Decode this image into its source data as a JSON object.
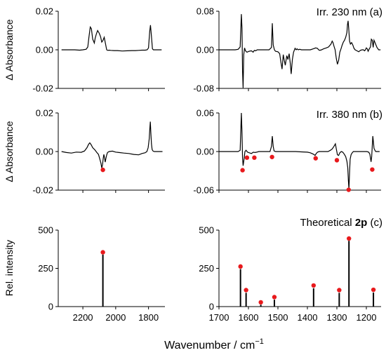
{
  "figure": {
    "xlabel_main": "Wavenumber / cm",
    "xlabel_sup": "−1",
    "ylabel_row1": "Δ Absorbance",
    "ylabel_row2": "Δ Absorbance",
    "ylabel_row3": "Rel. intensity",
    "title_a": "Irr. 230 nm (a)",
    "title_b": "Irr. 380 nm  (b)",
    "title_c_pre": "Theoretical ",
    "title_c_bold": "2p",
    "title_c_post": " (c)"
  },
  "chart_data": [
    {
      "id": "a-left",
      "type": "line",
      "panel": "a",
      "xlim": [
        2350,
        1700
      ],
      "ylim": [
        -0.02,
        0.02
      ],
      "yticks": [
        -0.02,
        0.0,
        0.02
      ],
      "ytick_labels": [
        "-0.02",
        "0.00",
        "0.02"
      ],
      "xticks": [
        2200,
        2000,
        1800
      ],
      "xtick_labels": [],
      "xtick_label_show": false,
      "x": [
        2330,
        2300,
        2250,
        2220,
        2200,
        2180,
        2170,
        2163,
        2155,
        2148,
        2140,
        2130,
        2125,
        2118,
        2110,
        2100,
        2092,
        2085,
        2078,
        2070,
        2062,
        2055,
        2048,
        2040,
        2030,
        2010,
        1990,
        1960,
        1930,
        1900,
        1880,
        1860,
        1840,
        1820,
        1808,
        1800,
        1793,
        1788,
        1782,
        1776,
        1770,
        1760,
        1740,
        1720
      ],
      "y": [
        0.0,
        0.0,
        0.0,
        -0.0002,
        0.0,
        0.0003,
        0.0015,
        0.0065,
        0.0118,
        0.011,
        0.0055,
        0.0035,
        0.006,
        0.0082,
        0.01,
        0.0085,
        0.0068,
        0.004,
        0.0048,
        0.0065,
        0.0032,
        0.0,
        -0.0003,
        -0.0002,
        -0.0003,
        -0.0004,
        -0.0004,
        -0.0006,
        -0.0005,
        -0.0004,
        -0.0004,
        -0.0003,
        -0.0002,
        -0.0002,
        0.0,
        0.001,
        0.0095,
        0.0128,
        0.007,
        0.0005,
        0.0,
        0.0,
        0.0,
        0.0
      ]
    },
    {
      "id": "a-right",
      "type": "line",
      "panel": "a",
      "xlim": [
        1700,
        1150
      ],
      "ylim": [
        -0.08,
        0.08
      ],
      "yticks": [
        -0.08,
        0.0,
        0.08
      ],
      "ytick_labels": [
        "-0.08",
        "0.00",
        "0.08"
      ],
      "xticks": [
        1700,
        1600,
        1500,
        1400,
        1300,
        1200
      ],
      "xtick_labels": [],
      "xtick_label_show": false,
      "x": [
        1700,
        1680,
        1660,
        1645,
        1635,
        1628,
        1624,
        1622,
        1620,
        1618,
        1616,
        1613,
        1610,
        1605,
        1598,
        1590,
        1584,
        1580,
        1576,
        1570,
        1560,
        1550,
        1540,
        1530,
        1522,
        1519,
        1516,
        1512,
        1508,
        1500,
        1494,
        1490,
        1486,
        1482,
        1479,
        1475,
        1470,
        1466,
        1462,
        1458,
        1455,
        1451,
        1447,
        1442,
        1438,
        1435,
        1431,
        1426,
        1420,
        1410,
        1400,
        1390,
        1380,
        1372,
        1366,
        1362,
        1358,
        1352,
        1345,
        1336,
        1328,
        1320,
        1316,
        1313,
        1310,
        1306,
        1302,
        1298,
        1294,
        1290,
        1286,
        1282,
        1278,
        1274,
        1270,
        1266,
        1264,
        1262,
        1260,
        1257,
        1254,
        1250,
        1246,
        1242,
        1238,
        1232,
        1226,
        1220,
        1214,
        1210,
        1206,
        1203,
        1200,
        1197,
        1194,
        1190,
        1186,
        1183,
        1180,
        1177,
        1174,
        1170,
        1164,
        1158,
        1152
      ],
      "y": [
        0.0,
        0.0,
        0.0,
        0.0,
        0.001,
        0.006,
        0.074,
        0.045,
        -0.045,
        -0.079,
        -0.01,
        0.004,
        -0.002,
        -0.005,
        -0.003,
        -0.002,
        -0.005,
        -0.001,
        -0.002,
        0.0,
        0.0,
        0.0,
        0.0,
        0.0,
        0.005,
        0.055,
        0.01,
        0.0,
        -0.003,
        -0.004,
        -0.008,
        -0.025,
        -0.04,
        -0.01,
        -0.02,
        -0.032,
        -0.012,
        -0.02,
        -0.008,
        -0.028,
        -0.05,
        -0.02,
        -0.005,
        0.003,
        0.0,
        0.002,
        0.0,
        0.001,
        0.0,
        0.0,
        0.0,
        0.0,
        0.002,
        0.004,
        0.003,
        0.0,
        -0.001,
        0.0,
        0.002,
        0.004,
        0.006,
        0.012,
        0.018,
        0.015,
        0.008,
        0.0,
        -0.018,
        -0.03,
        -0.022,
        -0.005,
        0.002,
        0.01,
        0.016,
        0.02,
        0.026,
        0.036,
        0.052,
        0.06,
        0.046,
        0.018,
        0.012,
        0.015,
        0.01,
        0.003,
        0.0,
        -0.002,
        -0.004,
        -0.001,
        0.0,
        0.0,
        -0.002,
        0.0,
        0.004,
        0.002,
        -0.003,
        0.002,
        0.006,
        0.022,
        0.02,
        0.005,
        0.02,
        0.014,
        0.005,
        0.0,
        0.0
      ]
    },
    {
      "id": "b-left",
      "type": "line",
      "panel": "b",
      "xlim": [
        2350,
        1700
      ],
      "ylim": [
        -0.02,
        0.02
      ],
      "yticks": [
        -0.02,
        0.0,
        0.02
      ],
      "ytick_labels": [
        "-0.02",
        "0.00",
        "0.02"
      ],
      "xticks": [
        2200,
        2000,
        1800
      ],
      "xtick_labels": [],
      "xtick_label_show": false,
      "x": [
        2330,
        2300,
        2270,
        2240,
        2210,
        2190,
        2175,
        2165,
        2158,
        2150,
        2140,
        2128,
        2115,
        2105,
        2098,
        2090,
        2085,
        2080,
        2076,
        2072,
        2068,
        2064,
        2060,
        2055,
        2050,
        2040,
        2020,
        2000,
        1980,
        1950,
        1920,
        1890,
        1860,
        1840,
        1820,
        1810,
        1802,
        1796,
        1792,
        1789,
        1786,
        1782,
        1778,
        1772,
        1765,
        1750,
        1730,
        1715
      ],
      "y": [
        0.0,
        -0.0005,
        -0.0008,
        -0.0003,
        -0.0004,
        0.0003,
        0.002,
        0.0038,
        0.0045,
        0.0036,
        0.002,
        0.001,
        -0.0005,
        -0.0015,
        -0.0035,
        -0.006,
        -0.0085,
        -0.0068,
        -0.0035,
        -0.0015,
        -0.003,
        -0.0055,
        -0.0038,
        -0.0018,
        -0.0005,
        0.0,
        0.0002,
        -0.0003,
        -0.0005,
        -0.0008,
        -0.001,
        -0.0015,
        -0.0017,
        -0.001,
        -0.0006,
        0.0,
        0.002,
        0.0065,
        0.012,
        0.0155,
        0.01,
        0.004,
        0.001,
        0.0002,
        0.0,
        0.0,
        0.0,
        0.0
      ],
      "markers": [
        {
          "x": 2078,
          "y": -0.0095
        }
      ]
    },
    {
      "id": "b-right",
      "type": "line",
      "panel": "b",
      "xlim": [
        1700,
        1150
      ],
      "ylim": [
        -0.06,
        0.06
      ],
      "yticks": [
        -0.06,
        0.0,
        0.06
      ],
      "ytick_labels": [
        "-0.06",
        "0.00",
        "0.06"
      ],
      "xticks": [
        1700,
        1600,
        1500,
        1400,
        1300,
        1200
      ],
      "xtick_labels": [],
      "xtick_label_show": false,
      "x": [
        1700,
        1680,
        1660,
        1645,
        1635,
        1628,
        1624,
        1622,
        1620,
        1618,
        1615,
        1612,
        1608,
        1603,
        1597,
        1590,
        1583,
        1578,
        1572,
        1565,
        1555,
        1545,
        1535,
        1527,
        1522,
        1519,
        1516,
        1513,
        1508,
        1500,
        1480,
        1460,
        1440,
        1420,
        1400,
        1390,
        1380,
        1374,
        1370,
        1366,
        1360,
        1350,
        1340,
        1330,
        1322,
        1316,
        1310,
        1305,
        1302,
        1298,
        1294,
        1290,
        1285,
        1280,
        1275,
        1270,
        1266,
        1263,
        1261,
        1259,
        1257,
        1255,
        1252,
        1248,
        1244,
        1238,
        1230,
        1222,
        1214,
        1206,
        1198,
        1192,
        1188,
        1184,
        1182,
        1180,
        1178,
        1176,
        1174,
        1171,
        1168,
        1162,
        1155
      ],
      "y": [
        0.0,
        0.0,
        0.0,
        0.0,
        0.0,
        0.002,
        0.06,
        0.03,
        -0.01,
        -0.022,
        -0.012,
        0.0,
        0.002,
        -0.001,
        -0.002,
        -0.003,
        -0.001,
        -0.0015,
        -0.001,
        0.0,
        0.0,
        0.0,
        0.0,
        0.0,
        0.008,
        0.024,
        0.008,
        0.001,
        0.0,
        0.0,
        0.0,
        0.0,
        0.0,
        -0.0005,
        -0.001,
        -0.002,
        -0.004,
        -0.006,
        -0.003,
        -0.001,
        0.0,
        0.0,
        0.0,
        0.0,
        0.002,
        0.004,
        0.008,
        0.012,
        0.004,
        -0.005,
        -0.006,
        -0.002,
        0.0,
        -0.001,
        -0.004,
        -0.008,
        -0.015,
        -0.025,
        -0.045,
        -0.058,
        -0.032,
        -0.012,
        -0.005,
        -0.002,
        0.0,
        0.0,
        0.0,
        0.0,
        0.0,
        0.0,
        0.0,
        -0.001,
        -0.004,
        -0.016,
        -0.008,
        0.008,
        0.024,
        0.015,
        0.005,
        0.002,
        0.0,
        0.0,
        0.0
      ],
      "markers": [
        {
          "x": 1620,
          "y": -0.029
        },
        {
          "x": 1605,
          "y": -0.0095
        },
        {
          "x": 1580,
          "y": -0.0095
        },
        {
          "x": 1520,
          "y": -0.0085
        },
        {
          "x": 1372,
          "y": -0.0105
        },
        {
          "x": 1300,
          "y": -0.0135
        },
        {
          "x": 1260,
          "y": -0.0595
        },
        {
          "x": 1180,
          "y": -0.028
        }
      ]
    },
    {
      "id": "c-left",
      "type": "stick",
      "panel": "c",
      "xlim": [
        2350,
        1700
      ],
      "ylim": [
        0,
        500
      ],
      "yticks": [
        0,
        250,
        500
      ],
      "ytick_labels": [
        "0",
        "250",
        "500"
      ],
      "xticks": [
        2200,
        2000,
        1800
      ],
      "xtick_labels": [
        "2200",
        "2000",
        "1800"
      ],
      "xtick_label_show": true,
      "sticks": [
        {
          "x": 2078,
          "y": 340
        }
      ],
      "markers": [
        {
          "x": 2078,
          "y": 355
        }
      ]
    },
    {
      "id": "c-right",
      "type": "stick",
      "panel": "c",
      "xlim": [
        1700,
        1150
      ],
      "ylim": [
        0,
        500
      ],
      "yticks": [
        0,
        250,
        500
      ],
      "ytick_labels": [
        "0",
        "250",
        "500"
      ],
      "xticks": [
        1700,
        1600,
        1500,
        1400,
        1300,
        1200
      ],
      "xtick_labels": [
        "1700",
        "1600",
        "1500",
        "1400",
        "1300",
        "1200"
      ],
      "xtick_label_show": true,
      "sticks": [
        {
          "x": 1627,
          "y": 245
        },
        {
          "x": 1608,
          "y": 90
        },
        {
          "x": 1558,
          "y": 12
        },
        {
          "x": 1512,
          "y": 45
        },
        {
          "x": 1379,
          "y": 120
        },
        {
          "x": 1292,
          "y": 90
        },
        {
          "x": 1259,
          "y": 430
        },
        {
          "x": 1176,
          "y": 92
        }
      ],
      "markers": [
        {
          "x": 1627,
          "y": 262
        },
        {
          "x": 1608,
          "y": 108
        },
        {
          "x": 1558,
          "y": 28
        },
        {
          "x": 1512,
          "y": 62
        },
        {
          "x": 1379,
          "y": 138
        },
        {
          "x": 1292,
          "y": 108
        },
        {
          "x": 1259,
          "y": 445
        },
        {
          "x": 1176,
          "y": 110
        }
      ]
    }
  ],
  "style": {
    "trace_color": "#000000",
    "marker_color": "#e8191c"
  }
}
